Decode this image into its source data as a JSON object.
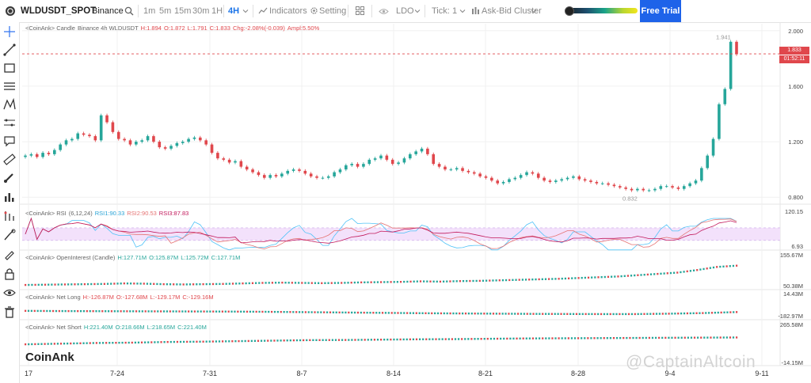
{
  "toolbar": {
    "symbol": "WLDUSDT_SPOT",
    "exchange": "Binance",
    "timeframes": [
      "1m",
      "5m",
      "15m",
      "30m",
      "1H",
      "4H"
    ],
    "active_timeframe": "4H",
    "indicators_label": "Indicators",
    "setting_label": "Setting",
    "ldo_label": "LDO",
    "tick_label": "Tick:",
    "tick_value": "1",
    "cluster_label": "Ask-Bid Cluster",
    "free_trial_label": "Free Trial"
  },
  "left_tools": [
    "crosshair-icon",
    "trendline-icon",
    "rectangle-icon",
    "horizontal-lines-icon",
    "fib-icon",
    "pattern-icon",
    "parallel-lines-icon",
    "comment-icon",
    "ruler-icon",
    "brush-icon",
    "bar-chart-icon",
    "indicator-icon",
    "magnet-icon",
    "pencil-lock-icon",
    "lock-icon",
    "eye-icon",
    "trash-icon"
  ],
  "candle_legend": {
    "prefix": "<CoinAnk> Candle",
    "market": "Binance 4h WLDUSDT",
    "high": "H:1.894",
    "open": "O:1.872",
    "low": "L:1.791",
    "close": "C:1.833",
    "change": "Chg:-2.08%(-0.039)",
    "amplitude": "Ampl:5.50%"
  },
  "rsi_legend": {
    "prefix": "<CoinAnk> RSI",
    "params": "(6,12,24)",
    "rsi1": "RSI1:90.33",
    "rsi2": "RSI2:90.53",
    "rsi3": "RSI3:87.83"
  },
  "oi_legend": {
    "prefix": "<CoinAnk> OpenInterest (Candle)",
    "high": "H:127.71M",
    "open": "O:125.87M",
    "low": "L:125.72M",
    "close": "C:127.71M"
  },
  "netlong_legend": {
    "prefix": "<CoinAnk> Net Long",
    "high": "H:-126.87M",
    "open": "O:-127.68M",
    "low": "L:-129.17M",
    "close": "C:-129.16M"
  },
  "netshort_legend": {
    "prefix": "<CoinAnk> Net Short",
    "high": "H:221.40M",
    "open": "O:218.66M",
    "low": "L:218.65M",
    "close": "C:221.40M"
  },
  "price_axis": [
    "2.000",
    "1.600",
    "1.200",
    "0.800"
  ],
  "price_markers": {
    "high_label": "1.941",
    "low_label": "0.832",
    "last_price": "1.833",
    "countdown": "01:52:11"
  },
  "rsi_axis": [
    "120.15",
    "6.93"
  ],
  "oi_axis": [
    "155.67M",
    "50.38M"
  ],
  "netlong_axis": [
    "14.43M",
    "-182.97M"
  ],
  "netshort_axis": [
    "265.58M",
    "-14.15M"
  ],
  "x_axis": [
    "17",
    "7-24",
    "7-31",
    "8-7",
    "8-14",
    "8-21",
    "8-28",
    "9-4",
    "9-11"
  ],
  "brand": "CoinAnk",
  "watermark": "@CaptainAltcoin",
  "colors": {
    "up": "#26a69a",
    "down": "#e0474c",
    "accent": "#1e63e9",
    "rsi1": "#4fc3f7",
    "rsi2": "#e57373",
    "rsi3": "#c2185b",
    "rsi_band": "#f3e1fb"
  },
  "chart_data": {
    "type": "candlestick",
    "series_price": [
      1.1,
      1.11,
      1.09,
      1.12,
      1.11,
      1.14,
      1.18,
      1.21,
      1.22,
      1.26,
      1.25,
      1.24,
      1.21,
      1.39,
      1.34,
      1.27,
      1.22,
      1.21,
      1.18,
      1.2,
      1.21,
      1.24,
      1.2,
      1.16,
      1.15,
      1.17,
      1.19,
      1.2,
      1.22,
      1.23,
      1.21,
      1.18,
      1.12,
      1.08,
      1.07,
      1.05,
      1.06,
      1.02,
      1.0,
      0.98,
      0.96,
      0.94,
      0.96,
      0.95,
      0.97,
      0.99,
      1.0,
      0.99,
      0.97,
      0.95,
      0.94,
      0.94,
      0.95,
      0.98,
      1.0,
      1.03,
      1.04,
      1.02,
      1.04,
      1.07,
      1.08,
      1.1,
      1.07,
      1.04,
      1.05,
      1.08,
      1.11,
      1.13,
      1.15,
      1.11,
      1.04,
      1.02,
      1.0,
      1.0,
      1.01,
      0.99,
      0.98,
      0.97,
      0.95,
      0.94,
      0.92,
      0.9,
      0.91,
      0.93,
      0.94,
      0.96,
      0.98,
      0.97,
      0.94,
      0.92,
      0.91,
      0.92,
      0.93,
      0.94,
      0.95,
      0.93,
      0.92,
      0.91,
      0.9,
      0.9,
      0.89,
      0.88,
      0.87,
      0.86,
      0.85,
      0.86,
      0.85,
      0.85,
      0.86,
      0.88,
      0.88,
      0.87,
      0.86,
      0.88,
      0.9,
      0.92,
      1.01,
      1.1,
      1.22,
      1.47,
      1.58,
      1.92,
      1.83
    ],
    "price_range": [
      0.75,
      2.05
    ],
    "open_interest": [
      52,
      53,
      54,
      55,
      56,
      58,
      57,
      55,
      54,
      55,
      56,
      58,
      60,
      61,
      60,
      59,
      60,
      62,
      63,
      64,
      66,
      65,
      67,
      68,
      70,
      72,
      74,
      76,
      79,
      82,
      85,
      90,
      95,
      100,
      110,
      122,
      127
    ],
    "net_long": [
      -128,
      -130,
      -131,
      -132,
      -133,
      -134,
      -135,
      -137,
      -140,
      -143,
      -146,
      -149,
      -152,
      -154,
      -156,
      -158,
      -159,
      -160,
      -160,
      -156,
      -150,
      -140
    ],
    "net_short": [
      180,
      184,
      188,
      190,
      194,
      196,
      199,
      202,
      205,
      206,
      208,
      210,
      211,
      213,
      215,
      216,
      217,
      218,
      219,
      220,
      221
    ],
    "rsi_band": [
      30,
      70
    ]
  }
}
